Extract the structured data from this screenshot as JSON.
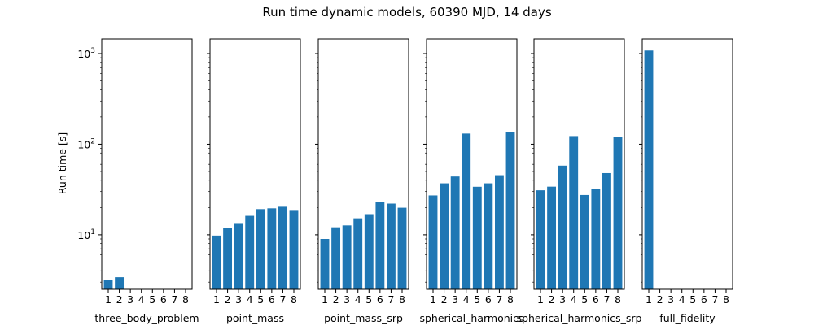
{
  "chart_data": {
    "type": "bar",
    "title": "Run time dynamic models, 60390 MJD, 14 days",
    "ylabel": "Run time [s]",
    "yscale": "log",
    "ylim": [
      2.5,
      1450
    ],
    "sharey": true,
    "color": "#1f77b4",
    "categories": [
      "1",
      "2",
      "3",
      "4",
      "5",
      "6",
      "7",
      "8"
    ],
    "y_tick_labels": [
      {
        "value": 10,
        "base": "10",
        "exp": "1"
      },
      {
        "value": 100,
        "base": "10",
        "exp": "2"
      },
      {
        "value": 1000,
        "base": "10",
        "exp": "3"
      }
    ],
    "panels": [
      {
        "xlabel": "three_body_problem",
        "values": [
          3.2,
          3.4,
          null,
          null,
          null,
          null,
          null,
          null
        ]
      },
      {
        "xlabel": "point_mass",
        "values": [
          9.8,
          11.8,
          13.2,
          16.2,
          19.2,
          19.6,
          20.4,
          18.4
        ]
      },
      {
        "xlabel": "point_mass_srp",
        "values": [
          9.0,
          12.1,
          12.7,
          15.2,
          16.9,
          22.8,
          22.1,
          19.9
        ]
      },
      {
        "xlabel": "spherical_harmonics",
        "values": [
          27.2,
          37.0,
          44.0,
          131.0,
          33.9,
          37.0,
          45.5,
          136.0
        ]
      },
      {
        "xlabel": "spherical_harmonics_srp",
        "values": [
          31.0,
          34.0,
          58.0,
          123.0,
          27.5,
          32.0,
          48.0,
          120.0
        ]
      },
      {
        "xlabel": "full_fidelity",
        "values": [
          1080,
          null,
          null,
          null,
          null,
          null,
          null,
          null
        ]
      }
    ]
  }
}
